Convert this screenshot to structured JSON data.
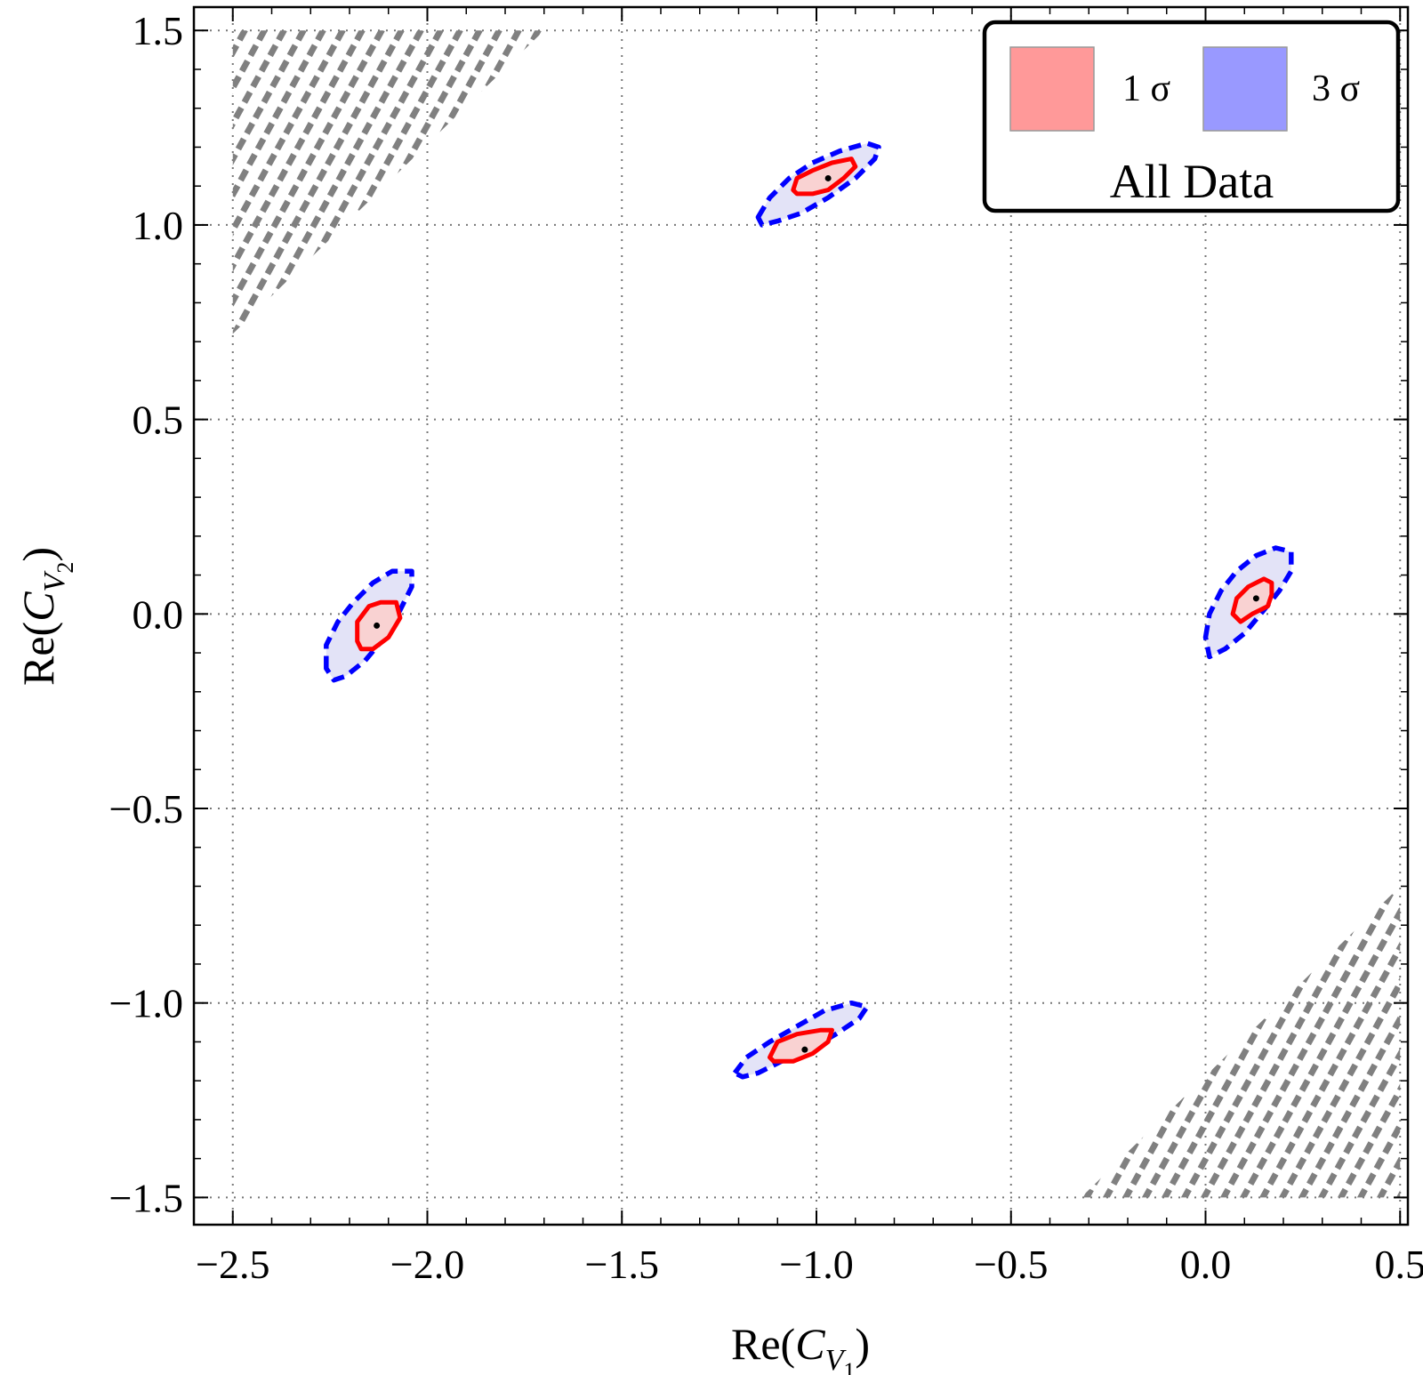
{
  "chart_data": {
    "type": "contour",
    "xlabel": "Re(C_V1)",
    "ylabel": "Re(C_V2)",
    "xlim": [
      -2.6,
      0.52
    ],
    "ylim": [
      -1.57,
      1.56
    ],
    "grid": true,
    "x_ticks": [
      -2.5,
      -2.0,
      -1.5,
      -1.0,
      -0.5,
      0.0,
      0.5
    ],
    "y_ticks": [
      -1.5,
      -1.0,
      -0.5,
      0.0,
      0.5,
      1.0,
      1.5
    ],
    "x_tick_labels": [
      "−2.5",
      "−2.0",
      "−1.5",
      "−1.0",
      "−0.5",
      "0.0",
      "0.5"
    ],
    "y_tick_labels": [
      "−1.5",
      "−1.0",
      "−0.5",
      "0.0",
      "0.5",
      "1.0",
      "1.5"
    ],
    "legend": {
      "position": "top-right",
      "title": "All Data",
      "entries": [
        {
          "label": "1 σ",
          "color": "#ff9999"
        },
        {
          "label": "3 σ",
          "color": "#9999ff"
        }
      ]
    },
    "best_fit_points": [
      {
        "x": -0.97,
        "y": 1.12
      },
      {
        "x": -2.13,
        "y": -0.03
      },
      {
        "x": 0.13,
        "y": 0.04
      },
      {
        "x": -1.03,
        "y": -1.12
      }
    ],
    "contours_1sigma": [
      [
        [
          -1.06,
          1.09
        ],
        [
          -1.05,
          1.12
        ],
        [
          -1.01,
          1.14
        ],
        [
          -0.96,
          1.16
        ],
        [
          -0.91,
          1.17
        ],
        [
          -0.9,
          1.15
        ],
        [
          -0.93,
          1.12
        ],
        [
          -0.97,
          1.09
        ],
        [
          -1.01,
          1.08
        ],
        [
          -1.05,
          1.08
        ]
      ],
      [
        [
          -2.18,
          -0.07
        ],
        [
          -2.18,
          -0.02
        ],
        [
          -2.15,
          0.02
        ],
        [
          -2.12,
          0.03
        ],
        [
          -2.08,
          0.03
        ],
        [
          -2.07,
          -0.01
        ],
        [
          -2.1,
          -0.06
        ],
        [
          -2.14,
          -0.09
        ],
        [
          -2.17,
          -0.09
        ]
      ],
      [
        [
          0.07,
          0.0
        ],
        [
          0.08,
          0.04
        ],
        [
          0.11,
          0.07
        ],
        [
          0.15,
          0.09
        ],
        [
          0.17,
          0.08
        ],
        [
          0.17,
          0.05
        ],
        [
          0.16,
          0.02
        ],
        [
          0.12,
          0.0
        ],
        [
          0.09,
          -0.02
        ]
      ],
      [
        [
          -1.12,
          -1.14
        ],
        [
          -1.1,
          -1.1
        ],
        [
          -1.05,
          -1.08
        ],
        [
          -0.99,
          -1.07
        ],
        [
          -0.96,
          -1.07
        ],
        [
          -0.97,
          -1.1
        ],
        [
          -1.01,
          -1.13
        ],
        [
          -1.06,
          -1.15
        ],
        [
          -1.11,
          -1.15
        ]
      ]
    ],
    "contours_3sigma": [
      [
        [
          -1.15,
          1.02
        ],
        [
          -1.12,
          1.07
        ],
        [
          -1.07,
          1.12
        ],
        [
          -1.01,
          1.16
        ],
        [
          -0.94,
          1.19
        ],
        [
          -0.87,
          1.21
        ],
        [
          -0.84,
          1.2
        ],
        [
          -0.85,
          1.17
        ],
        [
          -0.9,
          1.12
        ],
        [
          -0.97,
          1.07
        ],
        [
          -1.04,
          1.03
        ],
        [
          -1.1,
          1.01
        ],
        [
          -1.14,
          1.0
        ]
      ],
      [
        [
          -2.26,
          -0.14
        ],
        [
          -2.26,
          -0.08
        ],
        [
          -2.23,
          -0.02
        ],
        [
          -2.19,
          0.03
        ],
        [
          -2.14,
          0.08
        ],
        [
          -2.09,
          0.11
        ],
        [
          -2.04,
          0.11
        ],
        [
          -2.04,
          0.07
        ],
        [
          -2.07,
          0.01
        ],
        [
          -2.11,
          -0.06
        ],
        [
          -2.16,
          -0.12
        ],
        [
          -2.21,
          -0.16
        ],
        [
          -2.24,
          -0.17
        ]
      ],
      [
        [
          0.0,
          -0.06
        ],
        [
          0.01,
          0.0
        ],
        [
          0.04,
          0.06
        ],
        [
          0.08,
          0.11
        ],
        [
          0.13,
          0.15
        ],
        [
          0.18,
          0.17
        ],
        [
          0.22,
          0.16
        ],
        [
          0.22,
          0.11
        ],
        [
          0.19,
          0.06
        ],
        [
          0.15,
          0.01
        ],
        [
          0.1,
          -0.05
        ],
        [
          0.05,
          -0.09
        ],
        [
          0.01,
          -0.11
        ]
      ],
      [
        [
          -1.21,
          -1.18
        ],
        [
          -1.18,
          -1.14
        ],
        [
          -1.12,
          -1.1
        ],
        [
          -1.05,
          -1.06
        ],
        [
          -0.98,
          -1.02
        ],
        [
          -0.91,
          -1.0
        ],
        [
          -0.87,
          -1.01
        ],
        [
          -0.89,
          -1.04
        ],
        [
          -0.95,
          -1.08
        ],
        [
          -1.02,
          -1.12
        ],
        [
          -1.09,
          -1.15
        ],
        [
          -1.15,
          -1.18
        ],
        [
          -1.19,
          -1.19
        ]
      ]
    ],
    "hatched_regions": [
      {
        "name": "top-left",
        "polygon": [
          [
            -2.5,
            1.5
          ],
          [
            -1.7,
            1.5
          ],
          [
            -2.5,
            0.72
          ]
        ],
        "color": "#808080"
      },
      {
        "name": "bottom-right",
        "polygon": [
          [
            -0.32,
            -1.5
          ],
          [
            0.5,
            -1.5
          ],
          [
            0.5,
            -0.7
          ]
        ],
        "color": "#808080"
      }
    ]
  }
}
